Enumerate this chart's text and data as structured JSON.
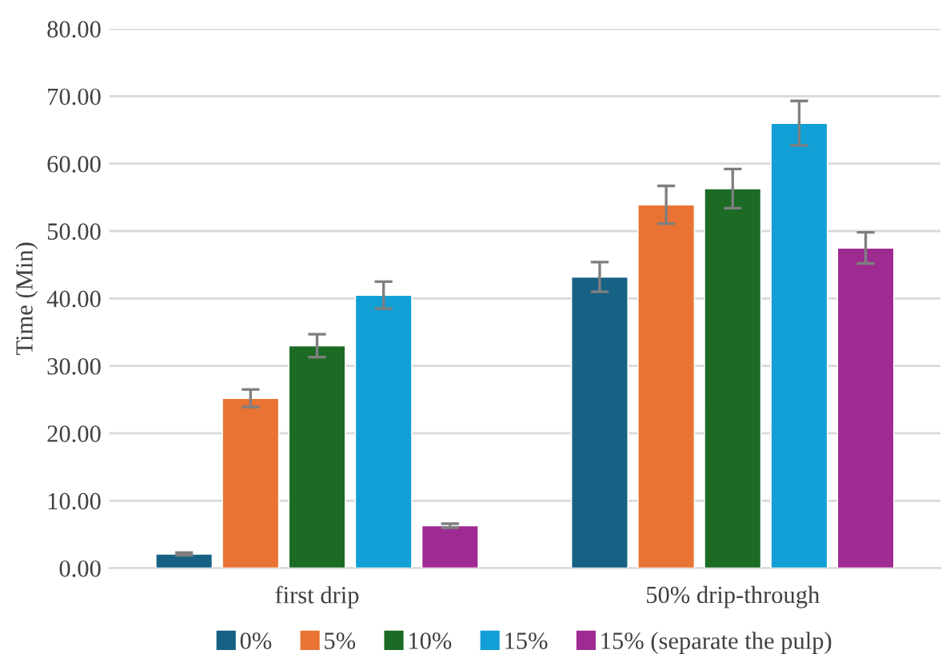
{
  "chart_data": {
    "type": "bar",
    "ylabel": "Time (Min)",
    "categories": [
      "first drip",
      "50% drip-through"
    ],
    "series": [
      {
        "name": "0%",
        "color": "#176184",
        "values": [
          2.1,
          43.2
        ],
        "errors": [
          0.2,
          2.2
        ]
      },
      {
        "name": "5%",
        "color": "#e87334",
        "values": [
          25.2,
          53.9
        ],
        "errors": [
          1.3,
          2.8
        ]
      },
      {
        "name": "10%",
        "color": "#1b6b25",
        "values": [
          33.0,
          56.3
        ],
        "errors": [
          1.7,
          2.9
        ]
      },
      {
        "name": "15%",
        "color": "#129fd6",
        "values": [
          40.5,
          66.0
        ],
        "errors": [
          2.0,
          3.3
        ]
      },
      {
        "name": "15% (separate the pulp)",
        "color": "#9e2b91",
        "values": [
          6.3,
          47.5
        ],
        "errors": [
          0.3,
          2.3
        ]
      }
    ],
    "ylim": [
      0,
      80
    ],
    "yticks": [
      {
        "value": 0,
        "label": "0.00"
      },
      {
        "value": 10,
        "label": "10.00"
      },
      {
        "value": 20,
        "label": "20.00"
      },
      {
        "value": 30,
        "label": "30.00"
      },
      {
        "value": 40,
        "label": "40.00"
      },
      {
        "value": 50,
        "label": "50.00"
      },
      {
        "value": 60,
        "label": "60.00"
      },
      {
        "value": 70,
        "label": "70.00"
      },
      {
        "value": 80,
        "label": "80.00"
      }
    ],
    "grid": "y",
    "legend": "bottom"
  }
}
